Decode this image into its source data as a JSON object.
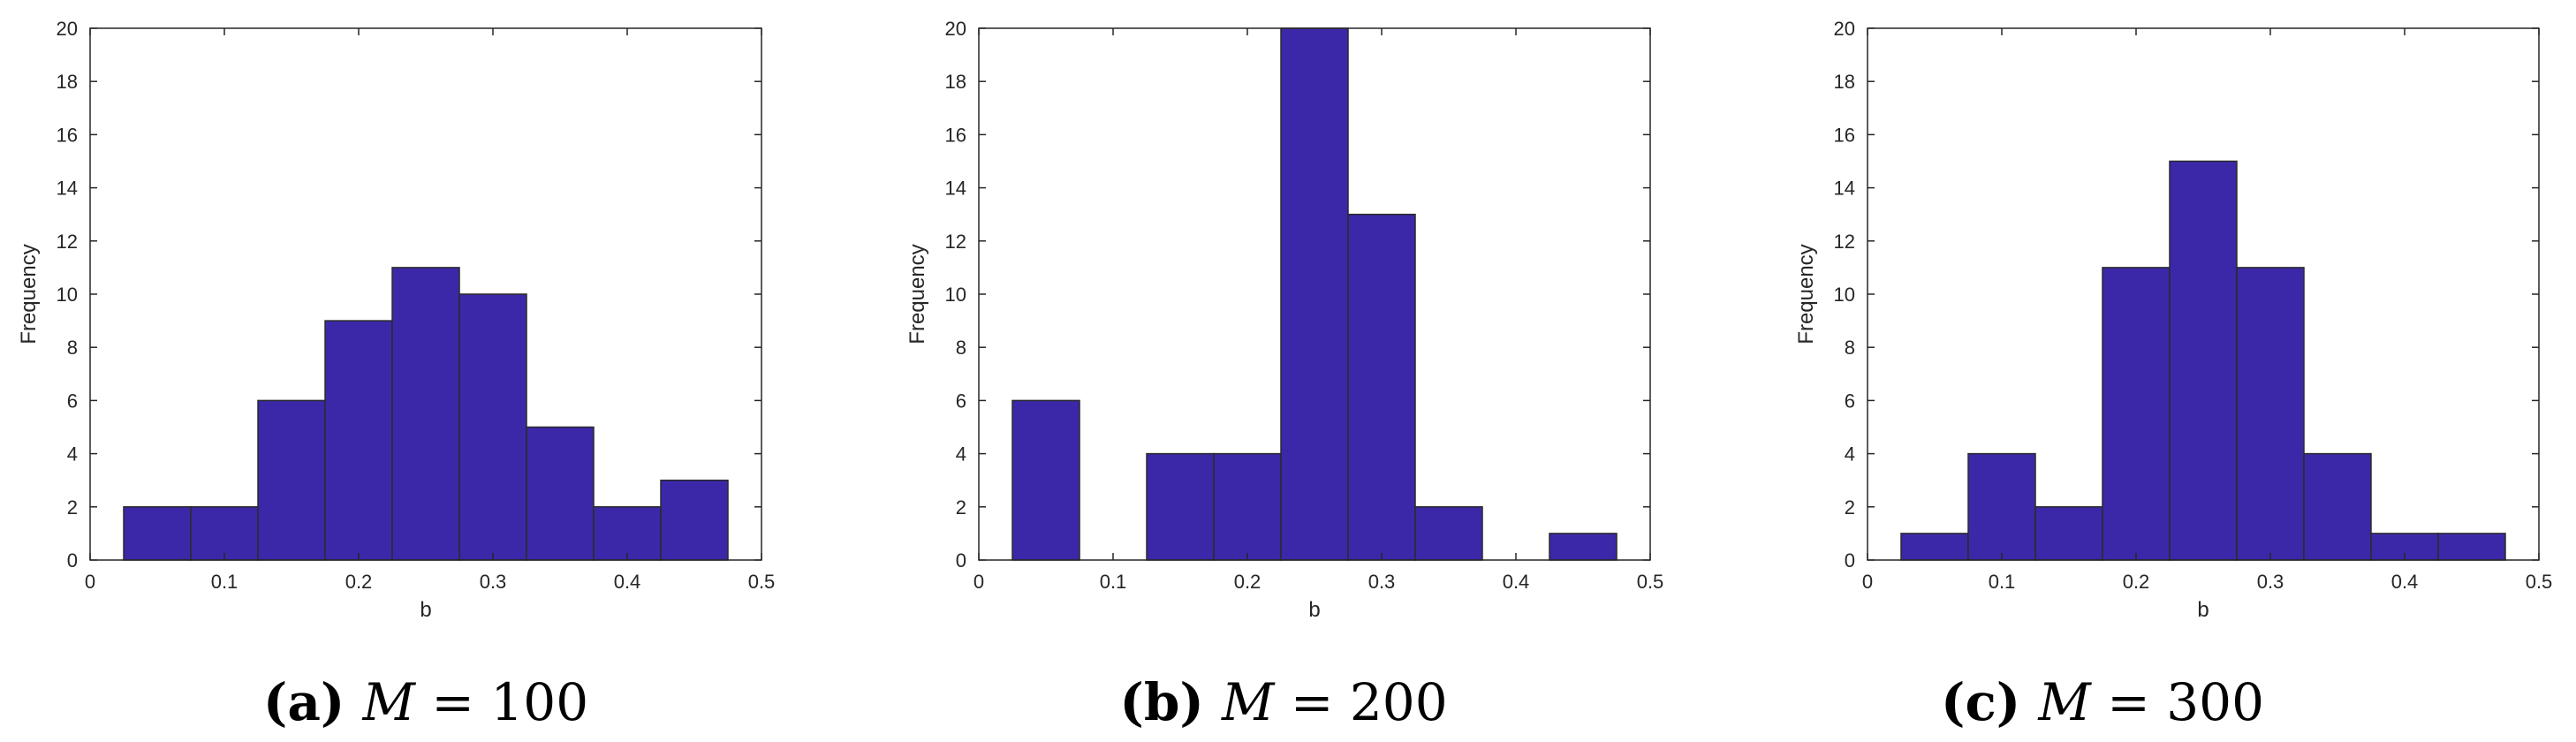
{
  "bar_color": "#3b28a8",
  "edge_color": "#2a2a2a",
  "chart_data": [
    {
      "type": "bar",
      "caption_letter": "(a)",
      "caption_math": "M",
      "caption_eq": " = 100",
      "xlabel": "b",
      "ylabel": "Frequency",
      "xlim": [
        0,
        0.5
      ],
      "ylim": [
        0,
        20
      ],
      "xticks": [
        "0",
        "0.1",
        "0.2",
        "0.3",
        "0.4",
        "0.5"
      ],
      "yticks": [
        "0",
        "2",
        "4",
        "6",
        "8",
        "10",
        "12",
        "14",
        "16",
        "18",
        "20"
      ],
      "bin_edges": [
        0.025,
        0.075,
        0.125,
        0.175,
        0.225,
        0.275,
        0.325,
        0.375,
        0.425,
        0.475
      ],
      "values": [
        2,
        2,
        6,
        9,
        11,
        10,
        5,
        2,
        3
      ]
    },
    {
      "type": "bar",
      "caption_letter": "(b)",
      "caption_math": "M",
      "caption_eq": " = 200",
      "xlabel": "b",
      "ylabel": "Frequency",
      "xlim": [
        0,
        0.5
      ],
      "ylim": [
        0,
        20
      ],
      "xticks": [
        "0",
        "0.1",
        "0.2",
        "0.3",
        "0.4",
        "0.5"
      ],
      "yticks": [
        "0",
        "2",
        "4",
        "6",
        "8",
        "10",
        "12",
        "14",
        "16",
        "18",
        "20"
      ],
      "bin_edges": [
        0.025,
        0.075,
        0.125,
        0.175,
        0.225,
        0.275,
        0.325,
        0.375,
        0.425,
        0.475
      ],
      "values": [
        6,
        0,
        4,
        4,
        20,
        13,
        2,
        0,
        1
      ]
    },
    {
      "type": "bar",
      "caption_letter": "(c)",
      "caption_math": "M",
      "caption_eq": " = 300",
      "xlabel": "b",
      "ylabel": "Frequency",
      "xlim": [
        0,
        0.5
      ],
      "ylim": [
        0,
        20
      ],
      "xticks": [
        "0",
        "0.1",
        "0.2",
        "0.3",
        "0.4",
        "0.5"
      ],
      "yticks": [
        "0",
        "2",
        "4",
        "6",
        "8",
        "10",
        "12",
        "14",
        "16",
        "18",
        "20"
      ],
      "bin_edges": [
        0.025,
        0.075,
        0.125,
        0.175,
        0.225,
        0.275,
        0.325,
        0.375,
        0.425,
        0.475
      ],
      "values": [
        1,
        4,
        2,
        11,
        15,
        11,
        4,
        1,
        1
      ]
    }
  ]
}
